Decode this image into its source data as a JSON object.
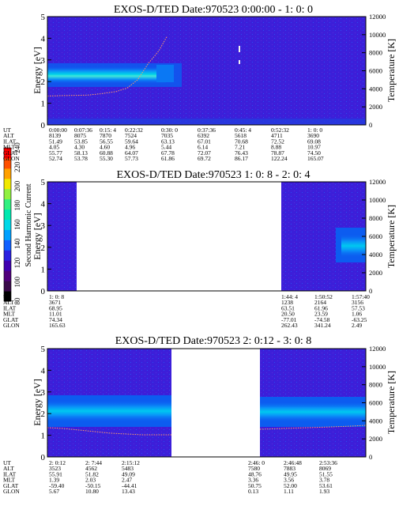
{
  "colorbar": {
    "label": "Second Harmonic Current",
    "ticks": [
      "80",
      "100",
      "120",
      "140",
      "160",
      "180",
      "200",
      "220",
      "240"
    ],
    "colors": [
      "#000000",
      "#3a0a4a",
      "#50007c",
      "#3f00b0",
      "#2a20e0",
      "#1060ff",
      "#00a0ff",
      "#00d8e8",
      "#00e8b0",
      "#30f080",
      "#90f040",
      "#f0e800",
      "#ffa000",
      "#ff5000",
      "#ff0000"
    ]
  },
  "panels": [
    {
      "title": "EXOS-D/TED   Date:970523  0:00:00 - 1: 0: 0",
      "ylabel_left": "Energy [eV]",
      "ylabel_right": "Temperature [K]",
      "yticks_left": [
        "0",
        "1",
        "2",
        "3",
        "4",
        "5"
      ],
      "yticks_right": [
        "0",
        "2000",
        "4000",
        "6000",
        "8000",
        "10000",
        "12000"
      ],
      "row_labels": [
        "UT",
        "ALT",
        "ILAT",
        "MLT",
        "GLAT",
        "GLON"
      ],
      "columns": [
        {
          "UT": "0:00:00",
          "ALT": "8139",
          "ILAT": "51.49",
          "MLT": "4.05",
          "GLAT": "55.77",
          "GLON": "52.74"
        },
        {
          "UT": "0:07:36",
          "ALT": "8075",
          "ILAT": "53.85",
          "MLT": "4.30",
          "GLAT": "58.13",
          "GLON": "53.78"
        },
        {
          "UT": "0:15: 4",
          "ALT": "7870",
          "ILAT": "56.55",
          "MLT": "4.60",
          "GLAT": "60.88",
          "GLON": "55.30"
        },
        {
          "UT": "0:22:32",
          "ALT": "7524",
          "ILAT": "59.64",
          "MLT": "4.96",
          "GLAT": "64.07",
          "GLON": "57.73"
        },
        {
          "UT": "0:30: 0",
          "ALT": "7035",
          "ILAT": "63.13",
          "MLT": "5.44",
          "GLAT": "67.78",
          "GLON": "61.86"
        },
        {
          "UT": "0:37:36",
          "ALT": "6392",
          "ILAT": "67.01",
          "MLT": "6.14",
          "GLAT": "72.07",
          "GLON": "69.72"
        },
        {
          "UT": "0:45: 4",
          "ALT": "5618",
          "ILAT": "70.68",
          "MLT": "7.21",
          "GLAT": "76.43",
          "GLON": "86.17"
        },
        {
          "UT": "0:52:32",
          "ALT": "4711",
          "ILAT": "72.52",
          "MLT": "8.88",
          "GLAT": "78.87",
          "GLON": "122.24"
        },
        {
          "UT": "1: 0: 0",
          "ALT": "3690",
          "ILAT": "69.08",
          "MLT": "10.97",
          "GLAT": "74.50",
          "GLON": "165.07"
        }
      ]
    },
    {
      "title": "EXOS-D/TED   Date:970523  1: 0: 8 - 2: 0: 4",
      "ylabel_left": "Energy [eV]",
      "ylabel_right": "Temperature [K]",
      "yticks_left": [
        "0",
        "1",
        "2",
        "3",
        "4",
        "5"
      ],
      "yticks_right": [
        "0",
        "2000",
        "4000",
        "6000",
        "8000",
        "10000",
        "12000"
      ],
      "row_labels": [
        "UT",
        "ALT",
        "ILAT",
        "MLT",
        "GLAT",
        "GLON"
      ],
      "columns": [
        {
          "UT": "1: 0: 8",
          "ALT": "3671",
          "ILAT": "68.95",
          "MLT": "11.01",
          "GLAT": "74.34",
          "GLON": "165.63"
        },
        {
          "UT": "1:44: 4",
          "ALT": "1238",
          "ILAT": "63.51",
          "MLT": "20.50",
          "GLAT": "-77.01",
          "GLON": "262.43"
        },
        {
          "UT": "1:50:52",
          "ALT": "2164",
          "ILAT": "61.96",
          "MLT": "23.59",
          "GLAT": "-74.58",
          "GLON": "341.24"
        },
        {
          "UT": "1:57:40",
          "ALT": "3156",
          "ILAT": "57.53",
          "MLT": "1.06",
          "GLAT": "-63.25",
          "GLON": "2.49"
        }
      ]
    },
    {
      "title": "EXOS-D/TED   Date:970523  2: 0:12 - 3: 0: 8",
      "ylabel_left": "Energy [eV]",
      "ylabel_right": "Temperature [K]",
      "yticks_left": [
        "0",
        "1",
        "2",
        "3",
        "4",
        "5"
      ],
      "yticks_right": [
        "0",
        "2000",
        "4000",
        "6000",
        "8000",
        "10000",
        "12000"
      ],
      "row_labels": [
        "UT",
        "ALT",
        "ILAT",
        "MLT",
        "GLAT",
        "GLON"
      ],
      "columns": [
        {
          "UT": "2: 0:12",
          "ALT": "3523",
          "ILAT": "55.91",
          "MLT": "1.39",
          "GLAT": "-59.40",
          "GLON": "5.67"
        },
        {
          "UT": "2: 7:44",
          "ALT": "4562",
          "ILAT": "51.82",
          "MLT": "2.03",
          "GLAT": "-50.15",
          "GLON": "10.80"
        },
        {
          "UT": "2:15:12",
          "ALT": "5483",
          "ILAT": "49.09",
          "MLT": "2.47",
          "GLAT": "-44.41",
          "GLON": "13.43"
        },
        {
          "UT": "2:46: 0",
          "ALT": "7580",
          "ILAT": "48.76",
          "MLT": "3.36",
          "GLAT": "50.75",
          "GLON": "0.13"
        },
        {
          "UT": "2:46:48",
          "ALT": "7883",
          "ILAT": "49.95",
          "MLT": "3.56",
          "GLAT": "52.00",
          "GLON": "1.11"
        },
        {
          "UT": "2:53:36",
          "ALT": "8069",
          "ILAT": "51.55",
          "MLT": "3.78",
          "GLAT": "53.61",
          "GLON": "1.93"
        }
      ]
    }
  ],
  "chart_data": [
    {
      "type": "heatmap",
      "title": "EXOS-D/TED   Date:970523  0:00:00 - 1: 0: 0",
      "x_range": [
        "0:00:00",
        "1: 0: 0"
      ],
      "ylabel": "Energy [eV]",
      "ylim": [
        0,
        5
      ],
      "y2label": "Temperature [K]",
      "y2lim": [
        0,
        12000
      ],
      "data_coverage": [
        [
          "0:00:00",
          "1: 0: 0"
        ]
      ],
      "ion_band": {
        "center_eV": 2.3,
        "from": "0:00:00",
        "to": "0:17:00"
      },
      "temperature_K": {
        "x": [
          "0:00:00",
          "0:03:00",
          "0:07:36",
          "0:10:00",
          "0:13:00",
          "0:15: 4",
          "0:17:00",
          "0:19:00",
          "0:21:00",
          "0:22:32"
        ],
        "y": [
          3200,
          3250,
          3300,
          3450,
          3700,
          4100,
          5000,
          6800,
          8200,
          9800
        ]
      }
    },
    {
      "type": "heatmap",
      "title": "EXOS-D/TED   Date:970523  1: 0: 8 - 2: 0: 4",
      "x_range": [
        "1: 0: 8",
        "2: 0: 4"
      ],
      "ylabel": "Energy [eV]",
      "ylim": [
        0,
        5
      ],
      "y2label": "Temperature [K]",
      "y2lim": [
        0,
        12000
      ],
      "data_coverage": [
        [
          "1: 0: 8",
          "1: 4: 0"
        ],
        [
          "1:44: 4",
          "2: 0: 4"
        ]
      ],
      "ion_band": {
        "center_eV": 2.2,
        "from": "1:57:00",
        "to": "2: 0: 4"
      }
    },
    {
      "type": "heatmap",
      "title": "EXOS-D/TED   Date:970523  2: 0:12 - 3: 0: 8",
      "x_range": [
        "2: 0:12",
        "3: 0: 8"
      ],
      "ylabel": "Energy [eV]",
      "ylim": [
        0,
        5
      ],
      "y2label": "Temperature [K]",
      "y2lim": [
        0,
        12000
      ],
      "data_coverage": [
        [
          "2: 0:12",
          "2:19:00"
        ],
        [
          "2:38:00",
          "3: 0: 8"
        ]
      ],
      "ion_band": {
        "center_eV": 2.15,
        "from": "2: 0:12",
        "to": "3: 0: 8"
      }
    }
  ]
}
